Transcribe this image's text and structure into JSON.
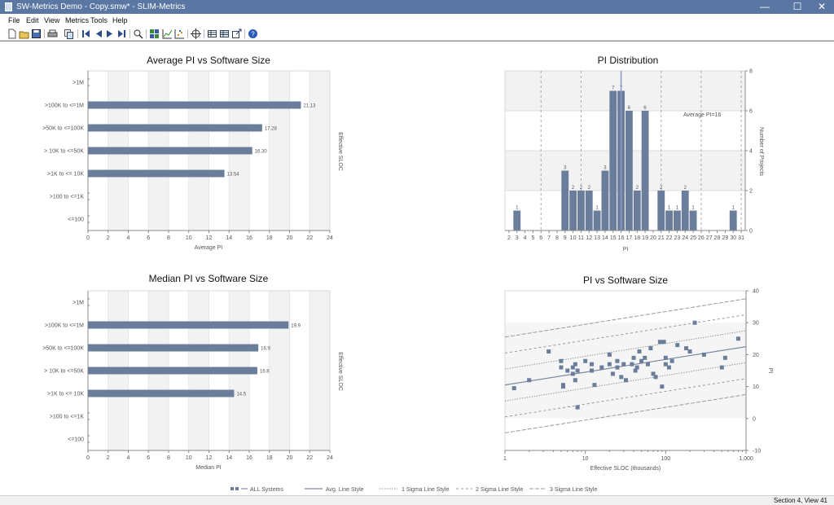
{
  "window": {
    "title": "SW-Metrics Demo - Copy.smw* - SLIM-Metrics",
    "minimize": "—",
    "maximize": "☐",
    "close": "✕"
  },
  "menu": [
    "File",
    "Edit",
    "View",
    "Metrics",
    "Tools",
    "Help"
  ],
  "toolbar_icons": [
    "new-icon",
    "open-icon",
    "save-icon",
    "print-icon",
    "copy-icon",
    "first-icon",
    "prev-icon",
    "next-icon",
    "last-icon",
    "zoom-icon",
    "grid-icon",
    "line-chart-icon",
    "scatter-chart-icon",
    "target-icon",
    "table-icon",
    "table-icon",
    "export-icon",
    "help-icon"
  ],
  "charts": {
    "avg_pi_size": {
      "title": "Average PI vs Software Size",
      "xlabel": "Average PI",
      "ylabel": "Effective SLOC"
    },
    "pi_distribution": {
      "title": "PI Distribution",
      "xlabel": "PI",
      "ylabel": "Number of Projects",
      "annotation": "Average PI=16"
    },
    "median_pi_size": {
      "title": "Median PI vs Software Size",
      "xlabel": "Median PI",
      "ylabel": "Effective SLOC"
    },
    "pi_vs_size": {
      "title": "PI vs Software Size",
      "xlabel": "Effective SLOC (thousands)",
      "ylabel": "PI"
    }
  },
  "legend": {
    "all_systems": "ALL Systems",
    "avg_line": "Avg. Line Style",
    "sigma1": "1 Sigma Line Style",
    "sigma2": "2 Sigma Line Style",
    "sigma3": "3 Sigma Line Style"
  },
  "status": "Section 4, View 41",
  "colors": {
    "bar": "#6a7e9b",
    "titlebar": "#5a77a3",
    "band": "#f2f2f2"
  },
  "chart_data": [
    {
      "type": "bar",
      "orientation": "horizontal",
      "title": "Average PI vs Software Size",
      "xlabel": "Average PI",
      "ylabel": "Effective SLOC",
      "categories": [
        ">1M",
        ">100K to <=1M",
        ">50K to <=100K",
        "> 10K to <=50K",
        ">1K to <= 10K",
        ">100 to <=1K",
        "<=100"
      ],
      "values": [
        null,
        21.13,
        17.28,
        16.3,
        13.54,
        null,
        null
      ],
      "value_labels": [
        "",
        "21.13",
        "17.28",
        "16.30",
        "13.54",
        "",
        ""
      ],
      "xlim": [
        0,
        24
      ],
      "xticks": [
        0,
        2,
        4,
        6,
        8,
        10,
        12,
        14,
        16,
        18,
        20,
        22,
        24
      ]
    },
    {
      "type": "bar",
      "title": "PI Distribution",
      "xlabel": "PI",
      "ylabel": "Number of Projects",
      "x": [
        2,
        3,
        4,
        5,
        6,
        7,
        8,
        9,
        10,
        11,
        12,
        13,
        14,
        15,
        16,
        17,
        18,
        19,
        20,
        21,
        22,
        23,
        24,
        25,
        26,
        27,
        28,
        29,
        30,
        31
      ],
      "values": [
        0,
        1,
        0,
        0,
        0,
        0,
        0,
        3,
        2,
        2,
        2,
        1,
        3,
        7,
        7,
        6,
        2,
        6,
        0,
        2,
        1,
        1,
        2,
        1,
        0,
        0,
        0,
        0,
        1,
        0
      ],
      "ylim": [
        0,
        8
      ],
      "yticks": [
        0,
        2,
        4,
        6,
        8
      ],
      "average": 16,
      "annotation": "Average PI=16"
    },
    {
      "type": "bar",
      "orientation": "horizontal",
      "title": "Median PI vs Software Size",
      "xlabel": "Median PI",
      "ylabel": "Effective SLOC",
      "categories": [
        ">1M",
        ">100K to <=1M",
        ">50K to <=100K",
        "> 10K to <=50K",
        ">1K to <= 10K",
        ">100 to <=1K",
        "<=100"
      ],
      "values": [
        null,
        19.9,
        16.9,
        16.8,
        14.5,
        null,
        null
      ],
      "value_labels": [
        "",
        "19.9",
        "16.9",
        "16.8",
        "14.5",
        "",
        ""
      ],
      "xlim": [
        0,
        24
      ],
      "xticks": [
        0,
        2,
        4,
        6,
        8,
        10,
        12,
        14,
        16,
        18,
        20,
        22,
        24
      ]
    },
    {
      "type": "scatter",
      "title": "PI vs Software Size",
      "xlabel": "Effective SLOC (thousands)",
      "ylabel": "PI",
      "xscale": "log",
      "xlim": [
        1,
        1000
      ],
      "xticks": [
        "1",
        "10",
        "100",
        "1,000"
      ],
      "ylim": [
        -10,
        40
      ],
      "yticks": [
        -10,
        0,
        10,
        20,
        30,
        40
      ],
      "series": [
        {
          "name": "ALL Systems",
          "points": [
            [
              1.3,
              9.5
            ],
            [
              2.0,
              12
            ],
            [
              3.5,
              21
            ],
            [
              5.0,
              18
            ],
            [
              5.0,
              16
            ],
            [
              5.3,
              10
            ],
            [
              5.3,
              10.5
            ],
            [
              6.0,
              15
            ],
            [
              7.0,
              14
            ],
            [
              7.0,
              16
            ],
            [
              7.5,
              17
            ],
            [
              7.5,
              12
            ],
            [
              8.0,
              3.5
            ],
            [
              8.0,
              15
            ],
            [
              10,
              18
            ],
            [
              12,
              15
            ],
            [
              12,
              17
            ],
            [
              13,
              10.5
            ],
            [
              16,
              16
            ],
            [
              20,
              20
            ],
            [
              20,
              17
            ],
            [
              22,
              14
            ],
            [
              25,
              18
            ],
            [
              25,
              16
            ],
            [
              28,
              13
            ],
            [
              30,
              17
            ],
            [
              32,
              12
            ],
            [
              38,
              17
            ],
            [
              40,
              19
            ],
            [
              42,
              15
            ],
            [
              44,
              16
            ],
            [
              47,
              21
            ],
            [
              50,
              18
            ],
            [
              55,
              19
            ],
            [
              60,
              17
            ],
            [
              65,
              22
            ],
            [
              70,
              14
            ],
            [
              75,
              13
            ],
            [
              85,
              24
            ],
            [
              90,
              10
            ],
            [
              95,
              24
            ],
            [
              100,
              17
            ],
            [
              100,
              19
            ],
            [
              110,
              16
            ],
            [
              120,
              18
            ],
            [
              140,
              23
            ],
            [
              180,
              22
            ],
            [
              200,
              21
            ],
            [
              230,
              30
            ],
            [
              300,
              20
            ],
            [
              500,
              16
            ],
            [
              550,
              19
            ],
            [
              800,
              25
            ]
          ]
        }
      ],
      "fit": {
        "avg_line": {
          "at_x1": 10.5,
          "at_x1000": 22.5
        },
        "sigma_step": 5
      }
    }
  ]
}
